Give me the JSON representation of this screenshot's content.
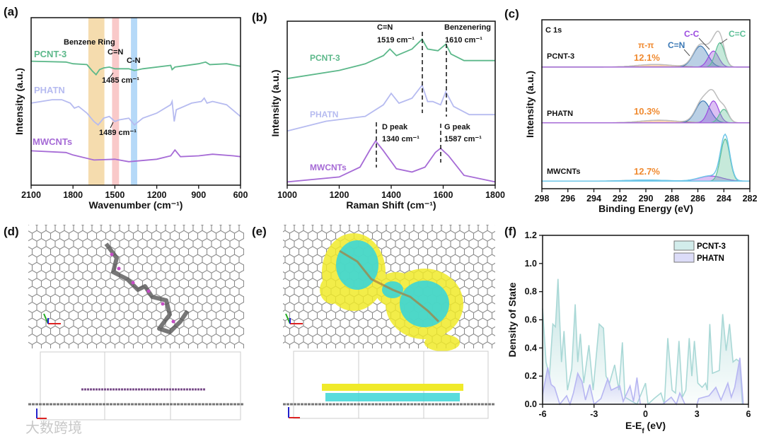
{
  "panel_labels": [
    "(a)",
    "(b)",
    "(c)",
    "(d)",
    "(e)",
    "(f)"
  ],
  "watermark": "大数跨境",
  "colors": {
    "pcnt3": "#5cb88a",
    "phatn": "#b6bbf0",
    "mwcnts": "#a66bd6",
    "cn_band": "#f3c98a",
    "cn_pink": "#f7b3b3",
    "cn_blue": "#9fcdf5",
    "pipi": "#f08a30",
    "c_n": "#3a78b5",
    "c_c": "#9b4be0",
    "c_c_green": "#5bbf96",
    "envelope": "#bdbdbd",
    "mw_env": "#6ec6e8",
    "dos_pcnt": "#a9d8d6",
    "dos_phatn": "#b7b6f2"
  },
  "chart_data": [
    {
      "id": "a",
      "type": "line",
      "title": "",
      "xlabel": "Wavenumber (cm⁻¹)",
      "ylabel": "Intensity (a.u.)",
      "xlim": [
        2100,
        600
      ],
      "ylim": [
        0,
        10
      ],
      "xticks": [
        2100,
        1800,
        1500,
        1200,
        900,
        600
      ],
      "bands": [
        {
          "label": "Benzene Ring",
          "range": [
            1690,
            1575
          ],
          "color": "#f3d6a0"
        },
        {
          "label": "C=N",
          "range": [
            1520,
            1470
          ],
          "color": "#f8c0c0"
        },
        {
          "label": "C-N",
          "range": [
            1385,
            1340
          ],
          "color": "#a8d2f7"
        }
      ],
      "annotations": [
        "1485 cm⁻¹",
        "1489 cm⁻¹"
      ],
      "series": [
        {
          "name": "PCNT-3",
          "color": "#5cb88a",
          "points": [
            [
              2100,
              7.4
            ],
            [
              1850,
              7.35
            ],
            [
              1800,
              7.25
            ],
            [
              1700,
              7.2
            ],
            [
              1660,
              6.8
            ],
            [
              1635,
              6.6
            ],
            [
              1610,
              6.9
            ],
            [
              1580,
              7.0
            ],
            [
              1540,
              7.05
            ],
            [
              1500,
              6.95
            ],
            [
              1400,
              6.95
            ],
            [
              1360,
              6.85
            ],
            [
              1300,
              6.95
            ],
            [
              1100,
              7.15
            ],
            [
              1090,
              6.9
            ],
            [
              1070,
              7.05
            ],
            [
              900,
              7.25
            ],
            [
              850,
              7.35
            ],
            [
              820,
              7.2
            ],
            [
              700,
              7.25
            ],
            [
              600,
              7.1
            ]
          ]
        },
        {
          "name": "PHATN",
          "color": "#b6bbf0",
          "points": [
            [
              2100,
              4.9
            ],
            [
              1950,
              5.1
            ],
            [
              1880,
              5.1
            ],
            [
              1820,
              4.9
            ],
            [
              1790,
              4.6
            ],
            [
              1760,
              4.7
            ],
            [
              1700,
              4.3
            ],
            [
              1650,
              3.8
            ],
            [
              1620,
              3.6
            ],
            [
              1580,
              4.0
            ],
            [
              1540,
              4.1
            ],
            [
              1500,
              3.8
            ],
            [
              1470,
              3.9
            ],
            [
              1400,
              4.0
            ],
            [
              1360,
              3.6
            ],
            [
              1300,
              4.0
            ],
            [
              1200,
              4.3
            ],
            [
              1100,
              4.8
            ],
            [
              1090,
              5.0
            ],
            [
              1075,
              3.8
            ],
            [
              1060,
              4.5
            ],
            [
              950,
              4.9
            ],
            [
              880,
              5.0
            ],
            [
              860,
              5.2
            ],
            [
              840,
              4.9
            ],
            [
              800,
              5.0
            ],
            [
              700,
              4.8
            ],
            [
              600,
              4.1
            ]
          ]
        },
        {
          "name": "MWCNTs",
          "color": "#a66bd6",
          "points": [
            [
              2100,
              2.05
            ],
            [
              1850,
              1.95
            ],
            [
              1800,
              1.8
            ],
            [
              1650,
              1.5
            ],
            [
              1500,
              1.55
            ],
            [
              1400,
              1.4
            ],
            [
              1200,
              1.55
            ],
            [
              1100,
              1.75
            ],
            [
              1070,
              2.1
            ],
            [
              1030,
              1.7
            ],
            [
              900,
              1.75
            ],
            [
              800,
              1.85
            ],
            [
              650,
              1.75
            ],
            [
              600,
              1.7
            ]
          ]
        }
      ]
    },
    {
      "id": "b",
      "type": "line",
      "xlabel": "Raman Shift (cm⁻¹)",
      "ylabel": "Intensity (a.u.)",
      "xlim": [
        1000,
        1800
      ],
      "ylim": [
        0,
        10
      ],
      "xticks": [
        1000,
        1200,
        1400,
        1600,
        1800
      ],
      "annotations": {
        "cn": "C=N",
        "cn_pos": "1519 cm⁻¹",
        "benz": "Benzenering",
        "benz_pos": "1610 cm⁻¹",
        "d": "D peak",
        "d_pos": "1340 cm⁻¹",
        "g": "G peak",
        "g_pos": "1587 cm⁻¹"
      },
      "series": [
        {
          "name": "PCNT-3",
          "color": "#5cb88a",
          "points": [
            [
              1000,
              6.5
            ],
            [
              1200,
              7.0
            ],
            [
              1300,
              7.4
            ],
            [
              1370,
              7.9
            ],
            [
              1395,
              8.3
            ],
            [
              1420,
              7.9
            ],
            [
              1480,
              8.3
            ],
            [
              1519,
              8.9
            ],
            [
              1540,
              8.3
            ],
            [
              1580,
              8.2
            ],
            [
              1610,
              8.6
            ],
            [
              1630,
              8.0
            ],
            [
              1680,
              7.6
            ],
            [
              1800,
              7.6
            ]
          ]
        },
        {
          "name": "PHATN",
          "color": "#b6bbf0",
          "points": [
            [
              1000,
              3.3
            ],
            [
              1150,
              3.9
            ],
            [
              1300,
              4.2
            ],
            [
              1370,
              4.9
            ],
            [
              1400,
              5.6
            ],
            [
              1430,
              5.0
            ],
            [
              1480,
              5.3
            ],
            [
              1519,
              6.1
            ],
            [
              1540,
              5.1
            ],
            [
              1560,
              5.1
            ],
            [
              1590,
              4.9
            ],
            [
              1610,
              5.7
            ],
            [
              1640,
              4.8
            ],
            [
              1700,
              4.3
            ],
            [
              1800,
              4.3
            ]
          ]
        },
        {
          "name": "MWCNTs",
          "color": "#a66bd6",
          "points": [
            [
              1000,
              0.2
            ],
            [
              1200,
              0.5
            ],
            [
              1280,
              1.1
            ],
            [
              1320,
              2.2
            ],
            [
              1340,
              2.7
            ],
            [
              1370,
              2.1
            ],
            [
              1420,
              1.0
            ],
            [
              1480,
              0.8
            ],
            [
              1530,
              1.1
            ],
            [
              1570,
              2.0
            ],
            [
              1590,
              2.25
            ],
            [
              1620,
              1.8
            ],
            [
              1680,
              0.6
            ],
            [
              1800,
              0.2
            ]
          ]
        }
      ]
    },
    {
      "id": "c",
      "type": "area",
      "xlabel": "Binding Energy (eV)",
      "ylabel": "Intensity (a.u.)",
      "inner_title": "C 1s",
      "xlim": [
        298,
        282
      ],
      "ylim": [
        0,
        10
      ],
      "xticks": [
        298,
        296,
        294,
        292,
        290,
        288,
        286,
        284,
        282
      ],
      "component_labels": {
        "pipi": "π-π",
        "cn": "C=N",
        "cc": "C-C",
        "c_eq_c": "C=C"
      },
      "samples": [
        {
          "name": "PCNT-3",
          "baseline": 7.2,
          "pipi_percent": "12.1%",
          "components": [
            {
              "label": "π-π",
              "center": 289.3,
              "height": 0.15,
              "width": 1.4,
              "color": "#f08a30"
            },
            {
              "label": "C=N",
              "center": 285.8,
              "height": 1.25,
              "width": 0.55,
              "color": "#3a78b5"
            },
            {
              "label": "C-C",
              "center": 284.8,
              "height": 0.95,
              "width": 0.4,
              "color": "#9b4be0"
            },
            {
              "label": "C=C",
              "center": 284.3,
              "height": 1.45,
              "width": 0.35,
              "color": "#5bbf96"
            }
          ]
        },
        {
          "name": "PHATN",
          "baseline": 3.9,
          "pipi_percent": "10.3%",
          "components": [
            {
              "label": "π-π",
              "center": 289.0,
              "height": 0.15,
              "width": 1.4,
              "color": "#f08a30"
            },
            {
              "label": "C=N",
              "center": 285.6,
              "height": 1.3,
              "width": 0.55,
              "color": "#3a78b5"
            },
            {
              "label": "C-C",
              "center": 284.8,
              "height": 1.3,
              "width": 0.4,
              "color": "#9b4be0"
            },
            {
              "label": "C=C",
              "center": 284.0,
              "height": 0.8,
              "width": 0.35,
              "color": "#5bbf96"
            }
          ]
        },
        {
          "name": "MWCNTs",
          "baseline": 0.45,
          "pipi_percent": "12.7%",
          "components": [
            {
              "label": "π-π",
              "center": 290.0,
              "height": 0.06,
              "width": 1.5,
              "color": "#f08a30"
            },
            {
              "label": "C-C",
              "center": 285.0,
              "height": 0.3,
              "width": 0.9,
              "color": "#9b4be0"
            },
            {
              "label": "C=C",
              "center": 283.9,
              "height": 2.5,
              "width": 0.35,
              "color": "#5bbf96"
            }
          ]
        }
      ]
    },
    {
      "id": "f",
      "type": "area",
      "xlabel": "E-E_f (eV)",
      "xlabel_main": "E-E",
      "xlabel_sub": "f",
      "xlabel_tail": " (eV)",
      "ylabel": "Density of State",
      "xlim": [
        -6,
        6
      ],
      "ylim": [
        0,
        1.2
      ],
      "xticks": [
        "-6",
        "-3",
        "0",
        "3",
        "6"
      ],
      "yticks": [
        "0.0",
        "0.2",
        "0.4",
        "0.6",
        "0.8",
        "1.0",
        "1.2"
      ],
      "legend": "top-right",
      "series": [
        {
          "name": "PCNT-3",
          "color": "#a9d8d6",
          "points": [
            [
              -6,
              0.68
            ],
            [
              -5.8,
              0.3
            ],
            [
              -5.6,
              0.2
            ],
            [
              -5.4,
              0.57
            ],
            [
              -5.25,
              0.55
            ],
            [
              -5.1,
              0.89
            ],
            [
              -4.9,
              0.3
            ],
            [
              -4.75,
              0.52
            ],
            [
              -4.55,
              0.1
            ],
            [
              -4.3,
              0.25
            ],
            [
              -4.1,
              0.71
            ],
            [
              -3.95,
              0.3
            ],
            [
              -3.8,
              0.5
            ],
            [
              -3.6,
              0.15
            ],
            [
              -3.3,
              0.42
            ],
            [
              -3.05,
              0.1
            ],
            [
              -2.7,
              0.57
            ],
            [
              -2.45,
              0.54
            ],
            [
              -2.3,
              0.2
            ],
            [
              -2.1,
              0.15
            ],
            [
              -1.8,
              0.28
            ],
            [
              -1.55,
              0.1
            ],
            [
              -1.35,
              0.44
            ],
            [
              -1.2,
              0.05
            ],
            [
              -0.5,
              0.0
            ],
            [
              0,
              0.15
            ],
            [
              0.15,
              0
            ],
            [
              0.5,
              0.04
            ],
            [
              0.9,
              0.08
            ],
            [
              1.1,
              0.0
            ],
            [
              1.3,
              0.47
            ],
            [
              1.55,
              0.1
            ],
            [
              1.75,
              0.08
            ],
            [
              1.95,
              0.45
            ],
            [
              2.15,
              0.05
            ],
            [
              2.35,
              0.1
            ],
            [
              2.55,
              0.47
            ],
            [
              2.7,
              0.2
            ],
            [
              2.85,
              0.45
            ],
            [
              3.05,
              0.15
            ],
            [
              3.3,
              0.12
            ],
            [
              3.5,
              0.15
            ],
            [
              3.6,
              0.1
            ],
            [
              3.75,
              0.57
            ],
            [
              3.9,
              0.22
            ],
            [
              4.3,
              0.24
            ],
            [
              4.5,
              0.64
            ],
            [
              4.7,
              0.38
            ],
            [
              4.9,
              0.57
            ],
            [
              5.1,
              0.3
            ],
            [
              5.3,
              0.32
            ],
            [
              5.5,
              0.3
            ],
            [
              5.65,
              0
            ]
          ]
        },
        {
          "name": "PHATN",
          "color": "#b7b6f2",
          "points": [
            [
              -6,
              0.07
            ],
            [
              -5.7,
              0.26
            ],
            [
              -5.5,
              0.14
            ],
            [
              -5.3,
              0.12
            ],
            [
              -5.0,
              0
            ],
            [
              -4.6,
              0.06
            ],
            [
              -4.4,
              0
            ],
            [
              -4.2,
              0.08
            ],
            [
              -3.95,
              0.22
            ],
            [
              -3.7,
              0.16
            ],
            [
              -3.5,
              0.03
            ],
            [
              -3.25,
              0.14
            ],
            [
              -3.0,
              0.0
            ],
            [
              -2.6,
              0.04
            ],
            [
              -2.2,
              0.18
            ],
            [
              -2.0,
              0.1
            ],
            [
              -1.5,
              0.13
            ],
            [
              -1.3,
              0.02
            ],
            [
              -0.9,
              0.13
            ],
            [
              -0.7,
              0.02
            ],
            [
              -0.5,
              0.19
            ],
            [
              -0.3,
              0.0
            ],
            [
              1.0,
              0
            ],
            [
              1.5,
              0.05
            ],
            [
              1.8,
              0
            ],
            [
              2.0,
              0.08
            ],
            [
              2.3,
              0
            ],
            [
              3.0,
              0
            ],
            [
              3.1,
              0.04
            ],
            [
              3.4,
              0.05
            ],
            [
              3.7,
              0.06
            ],
            [
              4.1,
              0.12
            ],
            [
              4.4,
              0.03
            ],
            [
              4.8,
              0.15
            ],
            [
              5.0,
              0.05
            ],
            [
              5.2,
              0.12
            ],
            [
              5.5,
              0.33
            ],
            [
              5.7,
              0
            ]
          ]
        }
      ]
    }
  ]
}
